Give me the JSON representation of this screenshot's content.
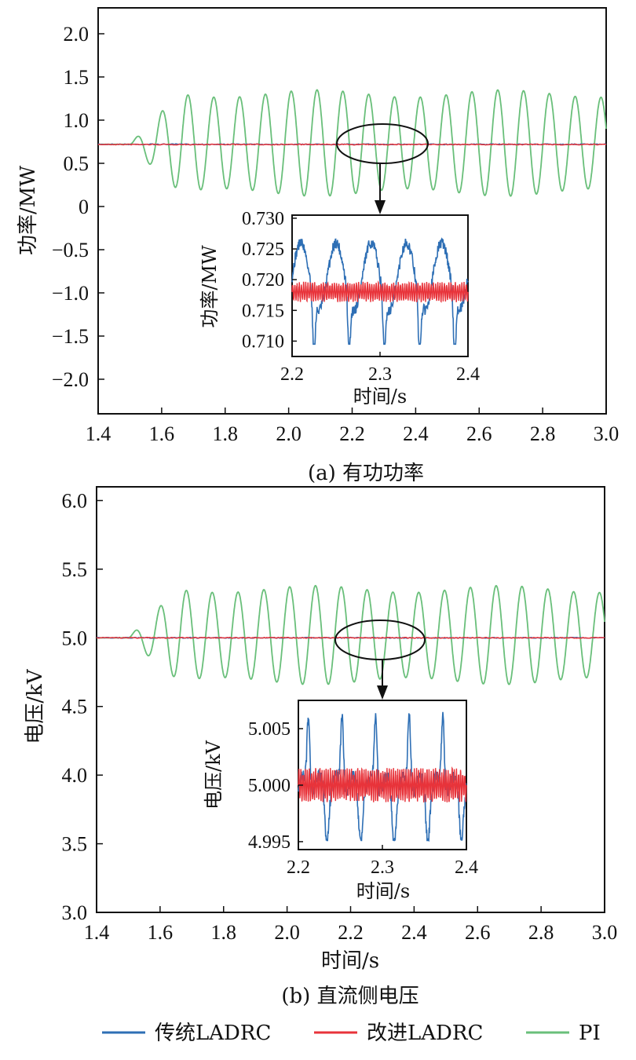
{
  "colors": {
    "traditional": "#2e6fb5",
    "improved": "#e8333a",
    "pi": "#69bf7a",
    "axis": "#111111"
  },
  "legend": [
    "传统LADRC",
    "改进LADRC",
    "PI"
  ],
  "chart_data": [
    {
      "type": "line",
      "caption": "(a) 有功功率",
      "xlabel": "",
      "ylabel": "功率/MW",
      "xlim": [
        1.4,
        3.0
      ],
      "ylim": [
        -2.4,
        2.3
      ],
      "xticks": [
        "1.4",
        "1.6",
        "1.8",
        "2.0",
        "2.2",
        "2.4",
        "2.6",
        "2.8",
        "3.0"
      ],
      "yticks": [
        "2.0",
        "1.5",
        "1.0",
        "0.5",
        "0",
        "−0.5",
        "−1.0",
        "−1.5",
        "−2.0"
      ],
      "series": [
        {
          "name": "传统LADRC",
          "baseline": 0.72
        },
        {
          "name": "改进LADRC",
          "baseline": 0.718
        },
        {
          "name": "PI",
          "baseline": 0.72,
          "onset": 1.5,
          "frequency_hz": 12.3,
          "max": 1.35,
          "min": 0.12
        }
      ],
      "inset": {
        "xlabel": "时间/s",
        "ylabel": "功率/MW",
        "xlim": [
          2.2,
          2.4
        ],
        "ylim": [
          0.7075,
          0.7305
        ],
        "xticks": [
          "2.2",
          "2.3",
          "2.4"
        ],
        "yticks": [
          "0.730",
          "0.725",
          "0.720",
          "0.715",
          "0.710"
        ],
        "series": [
          {
            "name": "传统LADRC",
            "mean": 0.7205,
            "max": 0.7277,
            "min": 0.7095,
            "frequency_hz": 25
          },
          {
            "name": "改进LADRC",
            "mean": 0.718,
            "max": 0.7197,
            "min": 0.7162
          }
        ]
      }
    },
    {
      "type": "line",
      "caption": "(b) 直流侧电压",
      "xlabel": "时间/s",
      "ylabel": "电压/kV",
      "xlim": [
        1.4,
        3.0
      ],
      "ylim": [
        3.0,
        6.1
      ],
      "xticks": [
        "1.4",
        "1.6",
        "1.8",
        "2.0",
        "2.2",
        "2.4",
        "2.6",
        "2.8",
        "3.0"
      ],
      "yticks": [
        "6.0",
        "5.5",
        "5.0",
        "4.5",
        "4.0",
        "3.5",
        "3.0"
      ],
      "series": [
        {
          "name": "传统LADRC",
          "baseline": 5.0
        },
        {
          "name": "改进LADRC",
          "baseline": 5.0
        },
        {
          "name": "PI",
          "baseline": 5.0,
          "onset": 1.5,
          "frequency_hz": 12.3,
          "max": 5.38,
          "min": 4.66
        }
      ],
      "inset": {
        "xlabel": "时间/s",
        "ylabel": "电压/kV",
        "xlim": [
          2.2,
          2.4
        ],
        "ylim": [
          4.9943,
          5.0075
        ],
        "xticks": [
          "2.2",
          "2.3",
          "2.4"
        ],
        "yticks": [
          "5.005",
          "5.000",
          "4.995"
        ],
        "series": [
          {
            "name": "传统LADRC",
            "mean": 5.0,
            "max": 5.0066,
            "min": 4.9951,
            "frequency_hz": 25
          },
          {
            "name": "改进LADRC",
            "mean": 5.0,
            "max": 5.0016,
            "min": 4.9984
          }
        ]
      }
    }
  ]
}
